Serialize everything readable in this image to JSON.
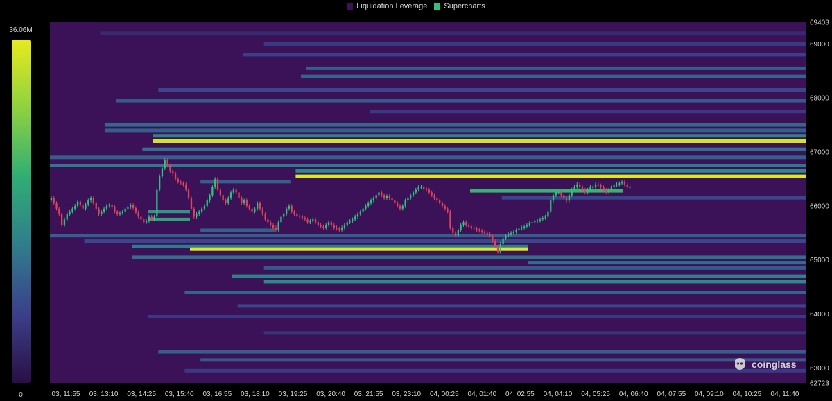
{
  "legend": {
    "items": [
      {
        "label": "Liquidation Leverage",
        "color": "#3b1258"
      },
      {
        "label": "Supercharts",
        "color": "#2ec27e"
      }
    ]
  },
  "colorbar": {
    "max_label": "36.06M",
    "min_label": "0",
    "stops": [
      "#2a0f45",
      "#3b3f8a",
      "#2f7d8c",
      "#2fae74",
      "#8fd13f",
      "#e8ea1c"
    ]
  },
  "watermark": {
    "text": "coinglass",
    "icon": "coinglass-logo-icon"
  },
  "chart_data": {
    "type": "heatmap",
    "title": "",
    "x_tick_labels": [
      "03, 11:55",
      "03, 13:10",
      "03, 14:25",
      "03, 15:40",
      "03, 16:55",
      "03, 18:10",
      "03, 19:25",
      "03, 20:40",
      "03, 21:55",
      "03, 23:10",
      "04, 00:25",
      "04, 01:40",
      "04, 02:55",
      "04, 04:10",
      "04, 05:25",
      "04, 06:40",
      "04, 07:55",
      "04, 09:10",
      "04, 10:25",
      "04, 11:40"
    ],
    "y_ticks": [
      62723,
      63000,
      64000,
      65000,
      66000,
      67000,
      68000,
      69000,
      69403
    ],
    "ylim": [
      62723,
      69403
    ],
    "x_range_minutes": [
      -5,
      1425
    ],
    "background_color": "#3b1258",
    "color_scale": {
      "min": 0,
      "max": 36.06,
      "unit": "M"
    },
    "liquidation_bands": [
      {
        "price": 69200,
        "start_minute": 90,
        "end_minute": 1425,
        "intensity": 0.12
      },
      {
        "price": 69000,
        "start_minute": 400,
        "end_minute": 1425,
        "intensity": 0.18
      },
      {
        "price": 68800,
        "start_minute": 360,
        "end_minute": 1425,
        "intensity": 0.2
      },
      {
        "price": 68550,
        "start_minute": 480,
        "end_minute": 1425,
        "intensity": 0.3
      },
      {
        "price": 68400,
        "start_minute": 470,
        "end_minute": 1425,
        "intensity": 0.32
      },
      {
        "price": 68150,
        "start_minute": 200,
        "end_minute": 1425,
        "intensity": 0.22
      },
      {
        "price": 67950,
        "start_minute": 120,
        "end_minute": 1425,
        "intensity": 0.28
      },
      {
        "price": 67750,
        "start_minute": 600,
        "end_minute": 1425,
        "intensity": 0.18
      },
      {
        "price": 67500,
        "start_minute": 100,
        "end_minute": 1425,
        "intensity": 0.33
      },
      {
        "price": 67400,
        "start_minute": 100,
        "end_minute": 1425,
        "intensity": 0.3
      },
      {
        "price": 67300,
        "start_minute": 190,
        "end_minute": 1425,
        "intensity": 0.42
      },
      {
        "price": 67200,
        "start_minute": 190,
        "end_minute": 1425,
        "intensity": 0.95
      },
      {
        "price": 67050,
        "start_minute": 170,
        "end_minute": 1425,
        "intensity": 0.36
      },
      {
        "price": 66900,
        "start_minute": -5,
        "end_minute": 1425,
        "intensity": 0.3
      },
      {
        "price": 66750,
        "start_minute": -5,
        "end_minute": 1425,
        "intensity": 0.38
      },
      {
        "price": 66650,
        "start_minute": 460,
        "end_minute": 1425,
        "intensity": 0.45
      },
      {
        "price": 66550,
        "start_minute": 460,
        "end_minute": 1425,
        "intensity": 0.98
      },
      {
        "price": 66450,
        "start_minute": 280,
        "end_minute": 450,
        "intensity": 0.3
      },
      {
        "price": 66280,
        "start_minute": 790,
        "end_minute": 1080,
        "intensity": 0.62
      },
      {
        "price": 66150,
        "start_minute": 850,
        "end_minute": 1425,
        "intensity": 0.22
      },
      {
        "price": 65900,
        "start_minute": 180,
        "end_minute": 260,
        "intensity": 0.5
      },
      {
        "price": 65750,
        "start_minute": 180,
        "end_minute": 260,
        "intensity": 0.55
      },
      {
        "price": 65550,
        "start_minute": 280,
        "end_minute": 420,
        "intensity": 0.3
      },
      {
        "price": 65450,
        "start_minute": -5,
        "end_minute": 1425,
        "intensity": 0.3
      },
      {
        "price": 65350,
        "start_minute": 60,
        "end_minute": 1425,
        "intensity": 0.22
      },
      {
        "price": 65250,
        "start_minute": 150,
        "end_minute": 900,
        "intensity": 0.4
      },
      {
        "price": 65200,
        "start_minute": 260,
        "end_minute": 900,
        "intensity": 0.98
      },
      {
        "price": 65050,
        "start_minute": 150,
        "end_minute": 1425,
        "intensity": 0.35
      },
      {
        "price": 64950,
        "start_minute": 900,
        "end_minute": 1425,
        "intensity": 0.35
      },
      {
        "price": 64850,
        "start_minute": 400,
        "end_minute": 1425,
        "intensity": 0.28
      },
      {
        "price": 64700,
        "start_minute": 340,
        "end_minute": 1425,
        "intensity": 0.42
      },
      {
        "price": 64600,
        "start_minute": 400,
        "end_minute": 1425,
        "intensity": 0.45
      },
      {
        "price": 64400,
        "start_minute": 250,
        "end_minute": 1425,
        "intensity": 0.32
      },
      {
        "price": 64150,
        "start_minute": 350,
        "end_minute": 1425,
        "intensity": 0.22
      },
      {
        "price": 63950,
        "start_minute": 180,
        "end_minute": 1425,
        "intensity": 0.18
      },
      {
        "price": 63650,
        "start_minute": 400,
        "end_minute": 1425,
        "intensity": 0.15
      },
      {
        "price": 63300,
        "start_minute": 200,
        "end_minute": 1425,
        "intensity": 0.3
      },
      {
        "price": 63150,
        "start_minute": 280,
        "end_minute": 1425,
        "intensity": 0.28
      },
      {
        "price": 62950,
        "start_minute": 250,
        "end_minute": 1425,
        "intensity": 0.18
      }
    ],
    "price_candles": {
      "interval_minutes": 5,
      "start_minute": -5,
      "up_color": "#2ec27e",
      "down_color": "#e0425a",
      "closes": [
        66150,
        66050,
        65950,
        65850,
        65650,
        65750,
        65850,
        65900,
        65950,
        66000,
        66080,
        66020,
        65950,
        66030,
        66100,
        66150,
        66050,
        65950,
        65850,
        65900,
        65950,
        66000,
        66020,
        65980,
        65900,
        65850,
        65870,
        65900,
        65950,
        65980,
        66020,
        65960,
        65880,
        65800,
        65750,
        65700,
        65720,
        65800,
        65750,
        65800,
        66300,
        66550,
        66700,
        66850,
        66750,
        66650,
        66600,
        66500,
        66450,
        66420,
        66400,
        66300,
        66150,
        65950,
        65800,
        65850,
        65900,
        65950,
        66000,
        66100,
        66200,
        66350,
        66500,
        66300,
        66200,
        66100,
        66050,
        66150,
        66250,
        66300,
        66250,
        66150,
        66050,
        66100,
        66000,
        65950,
        65900,
        65950,
        66050,
        65950,
        65850,
        65750,
        65700,
        65650,
        65600,
        65550,
        65700,
        65800,
        65850,
        65950,
        66000,
        65900,
        65850,
        65820,
        65800,
        65780,
        65750,
        65700,
        65720,
        65750,
        65700,
        65650,
        65620,
        65600,
        65650,
        65700,
        65650,
        65600,
        65580,
        65560,
        65600,
        65650,
        65700,
        65720,
        65750,
        65800,
        65850,
        65900,
        65950,
        66000,
        66050,
        66100,
        66150,
        66200,
        66250,
        66200,
        66150,
        66180,
        66150,
        66100,
        66050,
        66000,
        65950,
        66000,
        66100,
        66150,
        66200,
        66250,
        66300,
        66350,
        66350,
        66320,
        66300,
        66250,
        66200,
        66150,
        66100,
        66050,
        66000,
        65950,
        65900,
        65600,
        65500,
        65450,
        65550,
        65650,
        65700,
        65650,
        65620,
        65600,
        65580,
        65560,
        65540,
        65520,
        65500,
        65480,
        65450,
        65350,
        65250,
        65150,
        65300,
        65400,
        65450,
        65480,
        65500,
        65520,
        65550,
        65580,
        65600,
        65620,
        65650,
        65680,
        65700,
        65720,
        65730,
        65750,
        65780,
        65800,
        65900,
        66100,
        66200,
        66250,
        66250,
        66200,
        66150,
        66100,
        66200,
        66300,
        66350,
        66400,
        66350,
        66300,
        66250,
        66300,
        66350,
        66350,
        66400,
        66380,
        66350,
        66300,
        66250,
        66300,
        66350,
        66380,
        66400,
        66420,
        66450,
        66400,
        66350,
        66350
      ]
    }
  }
}
